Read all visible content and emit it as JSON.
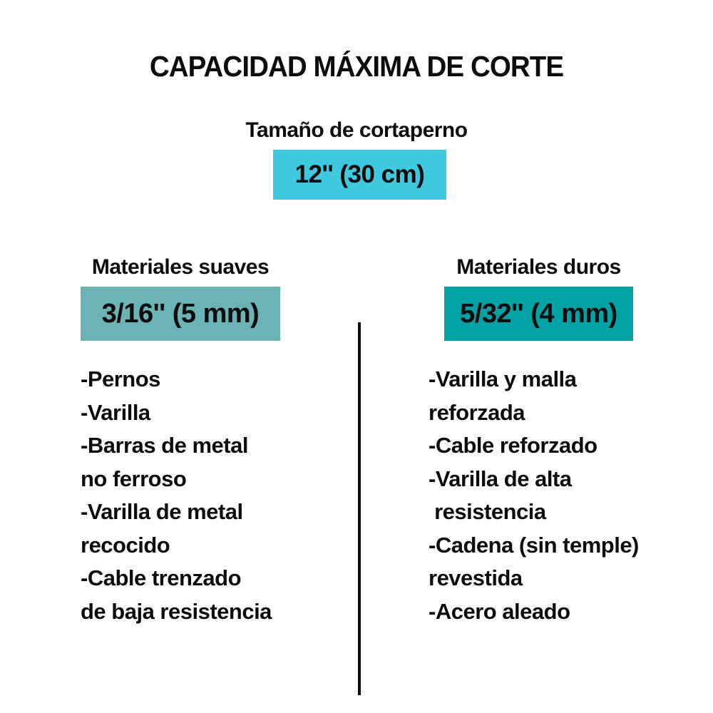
{
  "title": "CAPACIDAD MÁXIMA DE CORTE",
  "subtitle": "Tamaño de cortaperno",
  "cutter_size_badge": "12'' (30 cm)",
  "columns": {
    "soft": {
      "header": "Materiales suaves",
      "capacity_badge": "3/16'' (5 mm)",
      "lines": [
        "-Pernos",
        "-Varilla",
        "-Barras de metal",
        "no ferroso",
        "-Varilla de metal",
        "recocido",
        "-Cable trenzado",
        "de baja resistencia"
      ]
    },
    "hard": {
      "header": "Materiales duros",
      "capacity_badge": "5/32'' (4 mm)",
      "lines": [
        "-Varilla y malla",
        "reforzada",
        "-Cable reforzado",
        "-Varilla de alta",
        " resistencia",
        "-Cadena (sin temple)",
        "revestida",
        "-Acero aleado"
      ]
    }
  },
  "colors": {
    "size_badge_bg": "#3ec9df",
    "soft_badge_bg": "#6bb3b5",
    "hard_badge_bg": "#00a2a6",
    "text": "#0d0d0d",
    "divider": "#0d0d0d"
  }
}
